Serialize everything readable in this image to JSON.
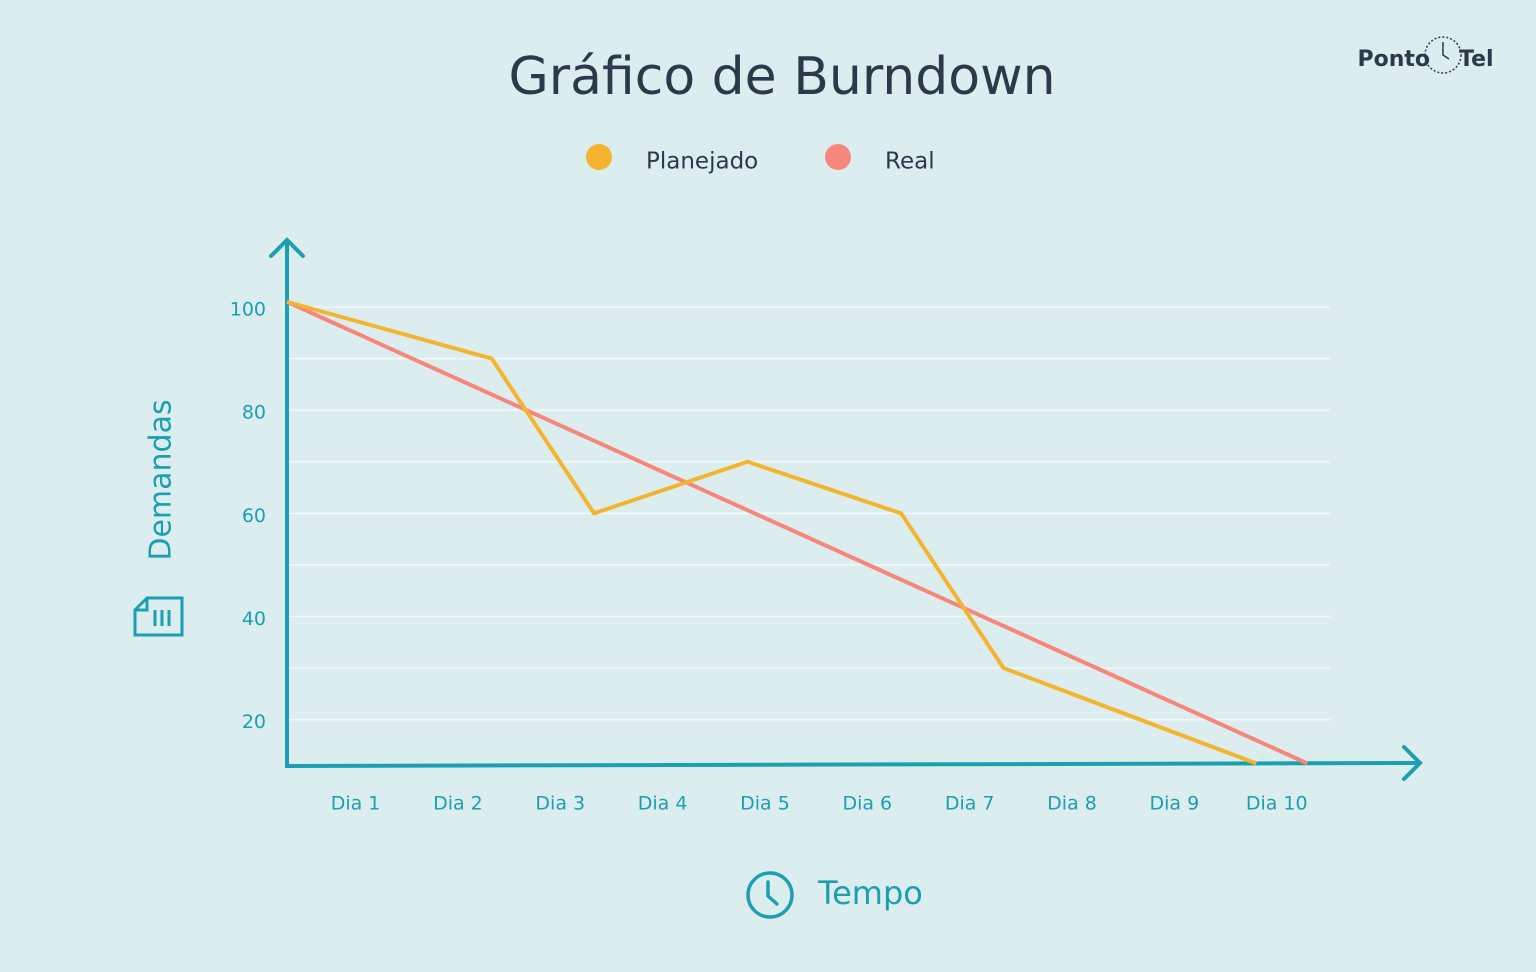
{
  "chart_data": {
    "type": "line",
    "title": "Gráfico de Burndown",
    "xlabel": "Tempo",
    "ylabel": "Demandas",
    "series": [
      {
        "name": "Planejado",
        "color": "#f4b42f",
        "x": [
          0.33,
          2.33,
          3.33,
          4.83,
          6.33,
          7.33,
          9.8
        ],
        "values": [
          101,
          90,
          60,
          70,
          60,
          30,
          11.5
        ]
      },
      {
        "name": "Real",
        "color": "#f7877a",
        "x": [
          0.33,
          10.3
        ],
        "values": [
          101,
          11.5
        ]
      }
    ],
    "xlim": [
      0.33,
      11.4
    ],
    "xticks": [
      {
        "value": 1,
        "label": "Dia 1"
      },
      {
        "value": 2,
        "label": "Dia 2"
      },
      {
        "value": 3,
        "label": "Dia 3"
      },
      {
        "value": 4,
        "label": "Dia 4"
      },
      {
        "value": 5,
        "label": "Dia 5"
      },
      {
        "value": 6,
        "label": "Dia 6"
      },
      {
        "value": 7,
        "label": "Dia 7"
      },
      {
        "value": 8,
        "label": "Dia 8"
      },
      {
        "value": 9,
        "label": "Dia 9"
      },
      {
        "value": 10,
        "label": "Dia 10"
      }
    ],
    "ylim": [
      11,
      113
    ],
    "yticks": [
      20,
      40,
      60,
      80,
      100
    ],
    "y_minor_ticks": [
      30,
      50,
      70,
      90
    ],
    "grid": true,
    "legend": "top",
    "axis_color": "#1b9fb1"
  },
  "logo": {
    "left": "Ponto",
    "right": "Tel"
  }
}
